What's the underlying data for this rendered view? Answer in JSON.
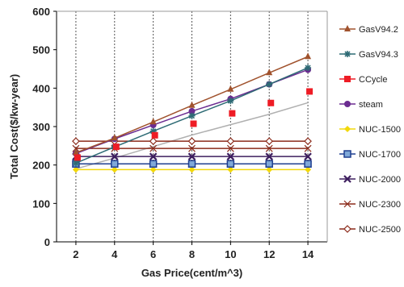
{
  "chart_data": {
    "type": "line",
    "xlabel": "Gas Price(cent/m^3)",
    "ylabel": "Total Cost($/kw-year)",
    "x": [
      2,
      4,
      6,
      8,
      10,
      12,
      14
    ],
    "xlim": [
      1,
      15
    ],
    "ylim": [
      0,
      600
    ],
    "y_ticks": [
      0,
      100,
      200,
      300,
      400,
      500,
      600
    ],
    "grid": "vertical dashed",
    "legend_position": "right",
    "series": [
      {
        "name": "GasV94.2",
        "color": "#a0522d",
        "marker": "triangle",
        "values": [
          232,
          270,
          312,
          355,
          397,
          440,
          482
        ]
      },
      {
        "name": "GasV94.3",
        "color": "#2e6b75",
        "marker": "asterisk",
        "values": [
          205,
          247,
          288,
          328,
          367,
          410,
          453
        ]
      },
      {
        "name": "CCycle",
        "color": "#ee1c25",
        "marker": "square",
        "values": null
      },
      {
        "name": "steam",
        "color": "#6b2c91",
        "marker": "circle",
        "values": [
          230,
          268,
          304,
          340,
          372,
          410,
          448
        ]
      },
      {
        "name": "NUC-1500",
        "color": "#f2d80a",
        "marker": "diamond",
        "values": [
          188,
          188,
          188,
          188,
          188,
          188,
          188
        ]
      },
      {
        "name": "NUC-1700",
        "color": "#1f3f8f",
        "marker": "square-outline",
        "values": [
          203,
          203,
          203,
          203,
          203,
          203,
          203
        ]
      },
      {
        "name": "NUC-2000",
        "color": "#3d1e5e",
        "marker": "x-heavy",
        "values": [
          222,
          222,
          222,
          222,
          222,
          222,
          222
        ]
      },
      {
        "name": "NUC-2300",
        "color": "#8b2a1a",
        "marker": "x",
        "values": [
          243,
          243,
          243,
          243,
          243,
          243,
          243
        ]
      },
      {
        "name": "NUC-2500",
        "color": "#8b2a1a",
        "marker": "diamond-outline",
        "values": [
          262,
          262,
          262,
          262,
          262,
          262,
          262
        ]
      }
    ],
    "ccycle_values": [
      190,
      218,
      248,
      278,
      305,
      332,
      362
    ],
    "ccycle_trend_color": "#b0b0b0",
    "nuc_line_color": "#8b2a1a"
  }
}
